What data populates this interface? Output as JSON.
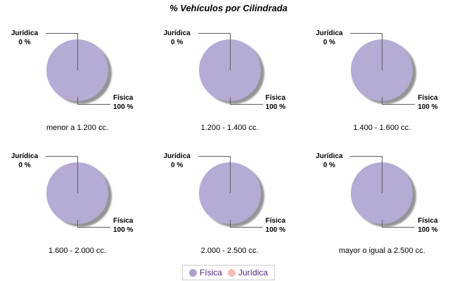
{
  "page": {
    "background": "#ffffff"
  },
  "chart_data": {
    "type": "pie",
    "title": "% Vehículos por Cilindrada",
    "layout": "2 rows x 3 columns of identical pie charts",
    "legend_position": "bottom",
    "series_labels": [
      "Física",
      "Jurídica"
    ],
    "pie_slice_labels": {
      "juridica_name": "Jurídica",
      "juridica_value": "0 %",
      "fisica_name": "Física",
      "fisica_value": "100 %"
    },
    "charts": [
      {
        "category": "menor a 1.200 cc.",
        "slices": [
          {
            "name": "Física",
            "value": 100
          },
          {
            "name": "Jurídica",
            "value": 0
          }
        ]
      },
      {
        "category": "1.200 - 1.400 cc.",
        "slices": [
          {
            "name": "Física",
            "value": 100
          },
          {
            "name": "Jurídica",
            "value": 0
          }
        ]
      },
      {
        "category": "1.400 - 1.600 cc.",
        "slices": [
          {
            "name": "Física",
            "value": 100
          },
          {
            "name": "Jurídica",
            "value": 0
          }
        ]
      },
      {
        "category": "1.600 - 2.000 cc.",
        "slices": [
          {
            "name": "Física",
            "value": 100
          },
          {
            "name": "Jurídica",
            "value": 0
          }
        ]
      },
      {
        "category": "2.000 - 2.500 cc.",
        "slices": [
          {
            "name": "Física",
            "value": 100
          },
          {
            "name": "Jurídica",
            "value": 0
          }
        ]
      },
      {
        "category": "mayor o igual a 2.500 cc.",
        "slices": [
          {
            "name": "Física",
            "value": 100
          },
          {
            "name": "Jurídica",
            "value": 0
          }
        ]
      }
    ],
    "legend": {
      "entries": [
        {
          "label": "Física",
          "color": "#aba1cb"
        },
        {
          "label": "Jurídica",
          "color": "#f5bac0"
        }
      ]
    },
    "colors": {
      "page_bg": "#ffffff",
      "pie_fill": "#b5abd5",
      "pie_shadow": "#949494",
      "connector_line": "#5d5d66",
      "label_text": "#000000",
      "title_text": "#000000",
      "legend_text": "#45277d",
      "legend_border": "#cccccc"
    }
  }
}
